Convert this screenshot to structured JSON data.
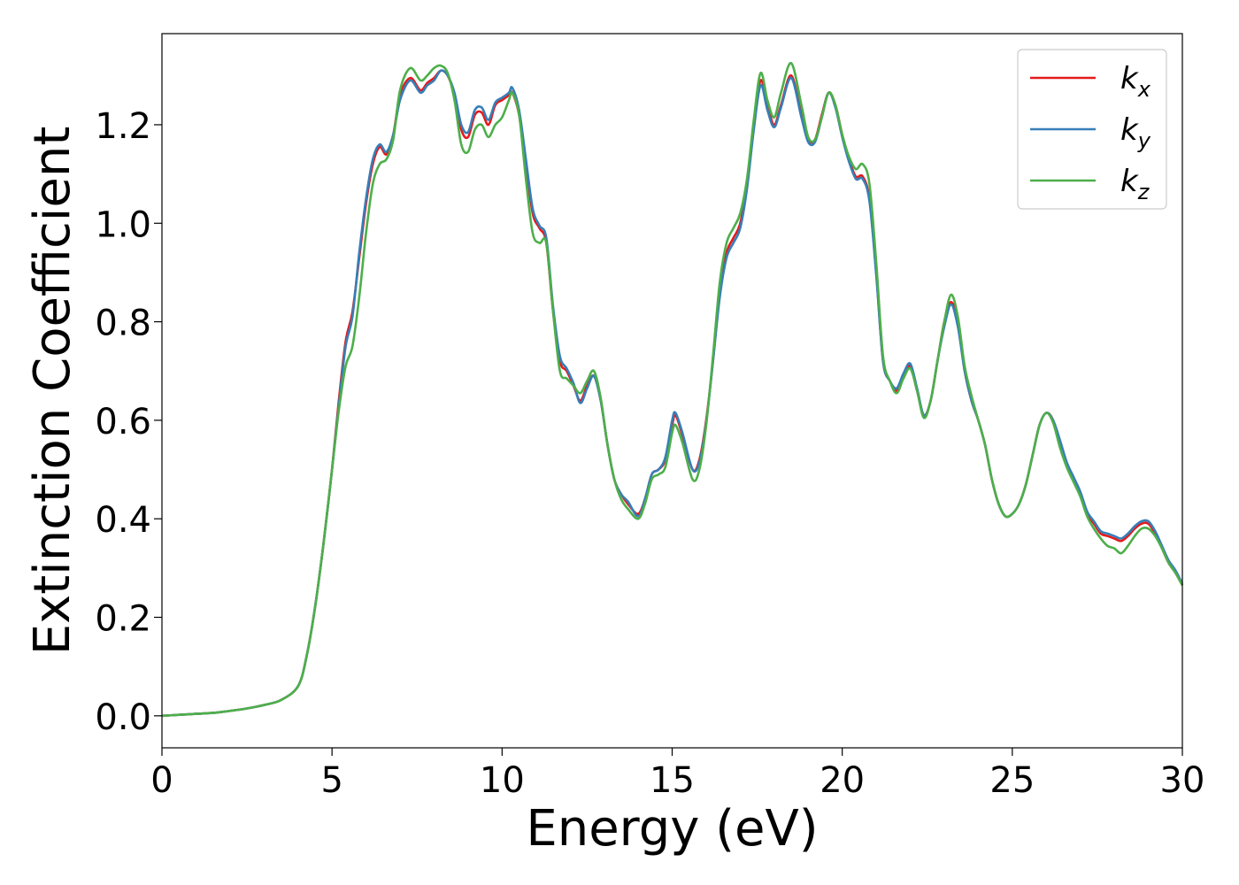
{
  "chart_data": {
    "type": "line",
    "title": "",
    "xlabel": "Energy (eV)",
    "ylabel": "Extinction Coefficient",
    "xlim": [
      0,
      30
    ],
    "ylim": [
      -0.065,
      1.385
    ],
    "xticks": [
      "0",
      "5",
      "10",
      "15",
      "20",
      "25",
      "30"
    ],
    "yticks": [
      "0.0",
      "0.2",
      "0.4",
      "0.6",
      "0.8",
      "1.0",
      "1.2"
    ],
    "grid": false,
    "legend_position": "top-right",
    "x": [
      0,
      0.5,
      1,
      1.5,
      2,
      2.5,
      3,
      3.5,
      4,
      4.25,
      4.5,
      4.75,
      5,
      5.2,
      5.4,
      5.6,
      5.8,
      6,
      6.2,
      6.4,
      6.6,
      6.8,
      7,
      7.3,
      7.6,
      7.8,
      8,
      8.2,
      8.4,
      8.6,
      8.8,
      9,
      9.2,
      9.4,
      9.6,
      9.8,
      10,
      10.2,
      10.3,
      10.5,
      10.7,
      10.9,
      11.1,
      11.3,
      11.5,
      11.7,
      11.9,
      12.1,
      12.3,
      12.5,
      12.7,
      12.9,
      13.1,
      13.3,
      13.5,
      13.7,
      14,
      14.2,
      14.4,
      14.6,
      14.8,
      15,
      15.1,
      15.3,
      15.6,
      15.8,
      16,
      16.2,
      16.4,
      16.6,
      16.8,
      17,
      17.2,
      17.4,
      17.6,
      17.8,
      18,
      18.2,
      18.5,
      18.8,
      19,
      19.2,
      19.4,
      19.6,
      19.8,
      20,
      20.2,
      20.4,
      20.6,
      20.8,
      21,
      21.2,
      21.4,
      21.6,
      21.8,
      22,
      22.2,
      22.4,
      22.6,
      22.8,
      23,
      23.2,
      23.4,
      23.6,
      23.8,
      24,
      24.2,
      24.4,
      24.6,
      24.8,
      25,
      25.2,
      25.4,
      25.6,
      25.8,
      26,
      26.2,
      26.4,
      26.6,
      26.8,
      27,
      27.2,
      27.4,
      27.6,
      27.8,
      28,
      28.2,
      28.4,
      28.6,
      28.8,
      29,
      29.2,
      29.4,
      29.6,
      29.8,
      30
    ],
    "series": [
      {
        "name": "k_x",
        "label_base": "k",
        "label_sub": "x",
        "color": "#e41a1c",
        "values": [
          0.0,
          0.002,
          0.004,
          0.006,
          0.01,
          0.015,
          0.022,
          0.032,
          0.06,
          0.12,
          0.22,
          0.35,
          0.5,
          0.64,
          0.76,
          0.82,
          0.93,
          1.04,
          1.12,
          1.155,
          1.14,
          1.18,
          1.26,
          1.295,
          1.27,
          1.285,
          1.295,
          1.31,
          1.3,
          1.26,
          1.19,
          1.175,
          1.22,
          1.225,
          1.2,
          1.24,
          1.25,
          1.26,
          1.265,
          1.22,
          1.12,
          1.02,
          0.99,
          0.96,
          0.82,
          0.72,
          0.7,
          0.67,
          0.64,
          0.67,
          0.69,
          0.64,
          0.55,
          0.48,
          0.45,
          0.43,
          0.41,
          0.44,
          0.49,
          0.5,
          0.52,
          0.59,
          0.61,
          0.57,
          0.5,
          0.52,
          0.6,
          0.72,
          0.86,
          0.94,
          0.97,
          1.0,
          1.08,
          1.2,
          1.29,
          1.24,
          1.2,
          1.24,
          1.3,
          1.22,
          1.17,
          1.17,
          1.22,
          1.265,
          1.24,
          1.18,
          1.13,
          1.095,
          1.095,
          1.05,
          0.9,
          0.72,
          0.68,
          0.66,
          0.69,
          0.71,
          0.66,
          0.61,
          0.64,
          0.72,
          0.8,
          0.84,
          0.8,
          0.7,
          0.64,
          0.6,
          0.55,
          0.48,
          0.43,
          0.405,
          0.41,
          0.43,
          0.47,
          0.53,
          0.59,
          0.615,
          0.6,
          0.55,
          0.51,
          0.48,
          0.45,
          0.41,
          0.39,
          0.37,
          0.365,
          0.36,
          0.355,
          0.365,
          0.38,
          0.39,
          0.39,
          0.37,
          0.34,
          0.31,
          0.29,
          0.265
        ]
      },
      {
        "name": "k_y",
        "label_base": "k",
        "label_sub": "y",
        "color": "#377eb8",
        "values": [
          0.0,
          0.002,
          0.004,
          0.006,
          0.01,
          0.015,
          0.022,
          0.032,
          0.06,
          0.12,
          0.22,
          0.35,
          0.5,
          0.63,
          0.75,
          0.81,
          0.94,
          1.05,
          1.13,
          1.16,
          1.145,
          1.18,
          1.25,
          1.29,
          1.265,
          1.28,
          1.29,
          1.31,
          1.3,
          1.265,
          1.2,
          1.185,
          1.23,
          1.235,
          1.21,
          1.245,
          1.255,
          1.265,
          1.275,
          1.23,
          1.13,
          1.03,
          0.995,
          0.97,
          0.83,
          0.73,
          0.705,
          0.675,
          0.635,
          0.665,
          0.69,
          0.64,
          0.55,
          0.48,
          0.45,
          0.435,
          0.405,
          0.44,
          0.49,
          0.5,
          0.525,
          0.6,
          0.615,
          0.575,
          0.5,
          0.515,
          0.595,
          0.72,
          0.85,
          0.93,
          0.96,
          0.99,
          1.07,
          1.19,
          1.28,
          1.23,
          1.195,
          1.235,
          1.295,
          1.215,
          1.165,
          1.165,
          1.215,
          1.265,
          1.235,
          1.175,
          1.125,
          1.09,
          1.09,
          1.045,
          0.895,
          0.72,
          0.68,
          0.665,
          0.695,
          0.715,
          0.665,
          0.61,
          0.64,
          0.72,
          0.79,
          0.835,
          0.79,
          0.7,
          0.64,
          0.6,
          0.55,
          0.48,
          0.43,
          0.405,
          0.41,
          0.43,
          0.47,
          0.53,
          0.59,
          0.615,
          0.6,
          0.56,
          0.515,
          0.485,
          0.455,
          0.415,
          0.395,
          0.375,
          0.37,
          0.365,
          0.36,
          0.37,
          0.385,
          0.395,
          0.395,
          0.375,
          0.345,
          0.315,
          0.295,
          0.268
        ]
      },
      {
        "name": "k_z",
        "label_base": "k",
        "label_sub": "z",
        "color": "#4daf4a",
        "values": [
          0.0,
          0.002,
          0.004,
          0.006,
          0.01,
          0.015,
          0.022,
          0.032,
          0.06,
          0.12,
          0.22,
          0.35,
          0.5,
          0.62,
          0.71,
          0.75,
          0.85,
          0.98,
          1.08,
          1.12,
          1.13,
          1.17,
          1.27,
          1.315,
          1.29,
          1.3,
          1.315,
          1.32,
          1.305,
          1.25,
          1.16,
          1.145,
          1.19,
          1.2,
          1.175,
          1.2,
          1.215,
          1.25,
          1.265,
          1.22,
          1.09,
          0.98,
          0.96,
          0.96,
          0.82,
          0.7,
          0.685,
          0.67,
          0.655,
          0.68,
          0.7,
          0.645,
          0.55,
          0.48,
          0.44,
          0.42,
          0.4,
          0.43,
          0.48,
          0.49,
          0.505,
          0.575,
          0.59,
          0.555,
          0.48,
          0.5,
          0.59,
          0.73,
          0.88,
          0.96,
          0.99,
          1.02,
          1.09,
          1.21,
          1.305,
          1.25,
          1.215,
          1.265,
          1.325,
          1.24,
          1.175,
          1.17,
          1.215,
          1.265,
          1.24,
          1.18,
          1.135,
          1.11,
          1.12,
          1.08,
          0.92,
          0.73,
          0.68,
          0.655,
          0.685,
          0.705,
          0.66,
          0.605,
          0.64,
          0.72,
          0.8,
          0.855,
          0.81,
          0.71,
          0.65,
          0.6,
          0.55,
          0.48,
          0.43,
          0.405,
          0.41,
          0.43,
          0.47,
          0.53,
          0.59,
          0.615,
          0.595,
          0.545,
          0.505,
          0.475,
          0.445,
          0.405,
          0.38,
          0.36,
          0.345,
          0.34,
          0.33,
          0.345,
          0.365,
          0.38,
          0.38,
          0.365,
          0.34,
          0.31,
          0.29,
          0.265
        ]
      }
    ]
  }
}
